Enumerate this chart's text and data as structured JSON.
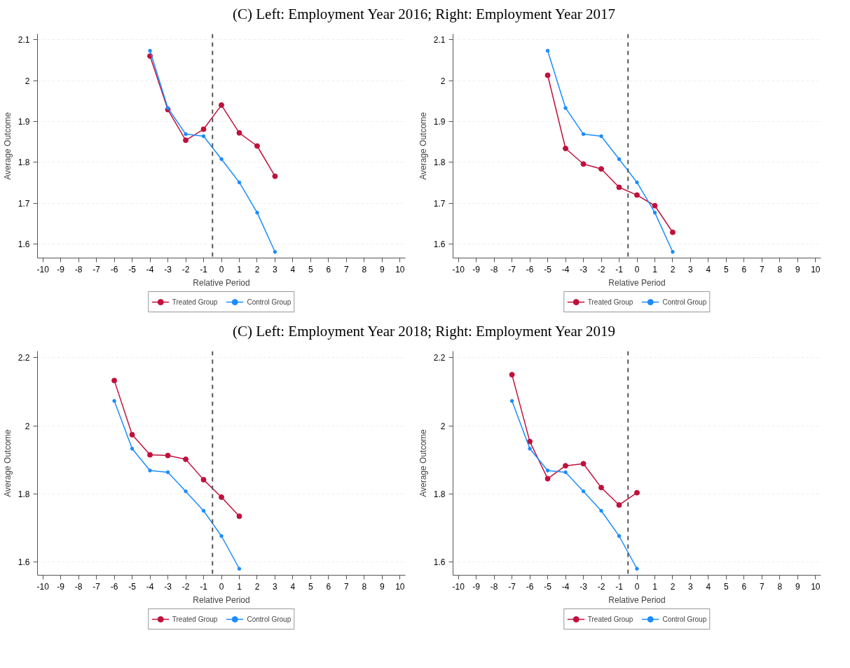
{
  "chart_data": [
    {
      "type": "line",
      "title": "(C) Left: Employment Year 2016; Right: Employment Year 2017",
      "xlabel": "Relative Period",
      "ylabel": "Average Outcome",
      "x": [
        -4,
        -3,
        -2,
        -1,
        0,
        1,
        2,
        3
      ],
      "series": [
        {
          "name": "Treated Group",
          "color": "#c0103c",
          "values": [
            2.06,
            1.929,
            1.854,
            1.881,
            1.94,
            1.872,
            1.84,
            1.766
          ]
        },
        {
          "name": "Control Group",
          "color": "#1a8cff",
          "values": [
            2.073,
            1.933,
            1.869,
            1.864,
            1.808,
            1.751,
            1.677,
            1.581
          ]
        }
      ],
      "xlim": [
        -10.3,
        10.3
      ],
      "xticks": [
        -10,
        -9,
        -8,
        -7,
        -6,
        -5,
        -4,
        -3,
        -2,
        -1,
        0,
        1,
        2,
        3,
        4,
        5,
        6,
        7,
        8,
        9,
        10
      ],
      "ylim": [
        1.566,
        2.114
      ],
      "yticks": [
        1.6,
        1.7,
        1.8,
        1.9,
        2,
        2.1
      ],
      "ref_lines": [
        {
          "axis": "x",
          "value": -0.5,
          "color": "#555555",
          "line_style": "dashed"
        }
      ],
      "grid": "y",
      "legend": "bottom",
      "marker": "circle",
      "line_style": "solid"
    },
    {
      "type": "line",
      "xlabel": "Relative Period",
      "ylabel": "Average Outcome",
      "x": [
        -5,
        -4,
        -3,
        -2,
        -1,
        0,
        1,
        2
      ],
      "series": [
        {
          "name": "Treated Group",
          "color": "#c0103c",
          "values": [
            2.013,
            1.834,
            1.796,
            1.784,
            1.739,
            1.72,
            1.694,
            1.629
          ]
        },
        {
          "name": "Control Group",
          "color": "#1a8cff",
          "values": [
            2.073,
            1.933,
            1.869,
            1.864,
            1.808,
            1.751,
            1.677,
            1.581
          ]
        }
      ],
      "xlim": [
        -10.3,
        10.3
      ],
      "xticks": [
        -10,
        -9,
        -8,
        -7,
        -6,
        -5,
        -4,
        -3,
        -2,
        -1,
        0,
        1,
        2,
        3,
        4,
        5,
        6,
        7,
        8,
        9,
        10
      ],
      "ylim": [
        1.566,
        2.114
      ],
      "yticks": [
        1.6,
        1.7,
        1.8,
        1.9,
        2,
        2.1
      ],
      "ref_lines": [
        {
          "axis": "x",
          "value": -0.5,
          "color": "#555555",
          "line_style": "dashed"
        }
      ],
      "grid": "y",
      "legend": "bottom",
      "marker": "circle",
      "line_style": "solid"
    },
    {
      "type": "line",
      "title": "(C) Left: Employment Year 2018; Right: Employment Year 2019",
      "xlabel": "Relative Period",
      "ylabel": "Average Outcome",
      "x": [
        -6,
        -5,
        -4,
        -3,
        -2,
        -1,
        0,
        1
      ],
      "series": [
        {
          "name": "Treated Group",
          "color": "#c0103c",
          "values": [
            2.133,
            1.974,
            1.915,
            1.913,
            1.902,
            1.842,
            1.791,
            1.735
          ]
        },
        {
          "name": "Control Group",
          "color": "#1a8cff",
          "values": [
            2.073,
            1.933,
            1.869,
            1.864,
            1.808,
            1.751,
            1.677,
            1.581
          ]
        }
      ],
      "xlim": [
        -10.3,
        10.3
      ],
      "xticks": [
        -10,
        -9,
        -8,
        -7,
        -6,
        -5,
        -4,
        -3,
        -2,
        -1,
        0,
        1,
        2,
        3,
        4,
        5,
        6,
        7,
        8,
        9,
        10
      ],
      "ylim": [
        1.562,
        2.219
      ],
      "yticks": [
        1.6,
        1.8,
        2,
        2.2
      ],
      "ref_lines": [
        {
          "axis": "x",
          "value": -0.5,
          "color": "#555555",
          "line_style": "dashed"
        }
      ],
      "grid": "y",
      "legend": "bottom",
      "marker": "circle",
      "line_style": "solid"
    },
    {
      "type": "line",
      "xlabel": "Relative Period",
      "ylabel": "Average Outcome",
      "x": [
        -7,
        -6,
        -5,
        -4,
        -3,
        -2,
        -1,
        0
      ],
      "series": [
        {
          "name": "Treated Group",
          "color": "#c0103c",
          "values": [
            2.15,
            1.954,
            1.845,
            1.883,
            1.889,
            1.819,
            1.768,
            1.804
          ]
        },
        {
          "name": "Control Group",
          "color": "#1a8cff",
          "values": [
            2.073,
            1.933,
            1.869,
            1.864,
            1.808,
            1.751,
            1.677,
            1.581
          ]
        }
      ],
      "xlim": [
        -10.3,
        10.3
      ],
      "xticks": [
        -10,
        -9,
        -8,
        -7,
        -6,
        -5,
        -4,
        -3,
        -2,
        -1,
        0,
        1,
        2,
        3,
        4,
        5,
        6,
        7,
        8,
        9,
        10
      ],
      "ylim": [
        1.562,
        2.219
      ],
      "yticks": [
        1.6,
        1.8,
        2,
        2.2
      ],
      "ref_lines": [
        {
          "axis": "x",
          "value": -0.5,
          "color": "#555555",
          "line_style": "dashed"
        }
      ],
      "grid": "y",
      "legend": "bottom",
      "marker": "circle",
      "line_style": "solid"
    }
  ]
}
